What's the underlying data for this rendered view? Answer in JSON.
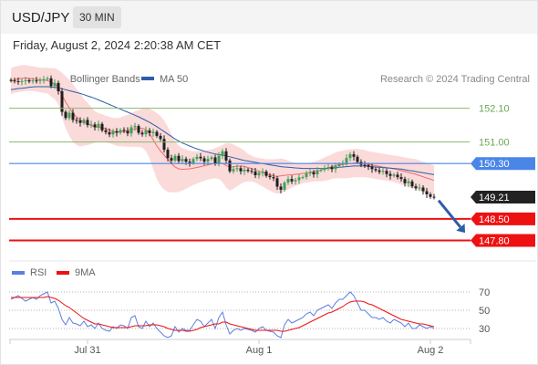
{
  "header": {
    "symbol": "USD/JPY",
    "timeframe": "30 MIN"
  },
  "timestamp": "Friday, August 2, 2024 2:20:38 AM CET",
  "colors": {
    "ma20": "#f26b6b",
    "bollinger_fill": "#fbdada",
    "ma50": "#2c5ea8",
    "green_level": "#86b86e",
    "blue_level": "#4a86e8",
    "red_level": "#ee1111",
    "candle_up": "#3fa055",
    "candle_down": "#1f1f1f",
    "last_price_bg": "#222222",
    "rsi": "#5b7fe0",
    "rsi_ma": "#ee1111",
    "arrow": "#2c5ea8"
  },
  "chart_data": [
    {
      "type": "candlestick",
      "title": "",
      "legend": {
        "placement": "top-left",
        "items": [
          {
            "name": "MA 20 + Bollinger Bands",
            "color": "#f26b6b"
          },
          {
            "name": "MA 50",
            "color": "#2c5ea8"
          }
        ]
      },
      "attribution": "Research © 2024 Trading Central",
      "x_ticks": [
        "Jul 31",
        "Aug 1",
        "Aug 2"
      ],
      "x_tick_bar_index": [
        24,
        71,
        118
      ],
      "ylim": [
        147.4,
        153.6
      ],
      "levels": [
        {
          "value": 152.1,
          "label": "152.10",
          "kind": "resistance-2"
        },
        {
          "value": 151.0,
          "label": "151.00",
          "kind": "resistance-1"
        },
        {
          "value": 150.3,
          "label": "150.30",
          "kind": "pivot"
        },
        {
          "value": 149.21,
          "label": "149.21",
          "kind": "last-price"
        },
        {
          "value": 148.5,
          "label": "148.50",
          "kind": "support-1"
        },
        {
          "value": 147.8,
          "label": "147.80",
          "kind": "support-2"
        }
      ],
      "forecast_arrow": {
        "from": 149.1,
        "to": 148.05,
        "direction": "down"
      },
      "close": [
        153.0,
        152.98,
        152.95,
        152.98,
        153.01,
        152.97,
        153.0,
        152.99,
        153.02,
        153.04,
        153.07,
        152.82,
        152.92,
        152.65,
        151.98,
        151.78,
        151.95,
        151.72,
        151.7,
        151.62,
        151.72,
        151.55,
        151.57,
        151.48,
        151.59,
        151.38,
        151.32,
        151.25,
        151.35,
        151.3,
        151.39,
        151.36,
        151.28,
        151.48,
        151.52,
        151.3,
        151.25,
        151.38,
        151.29,
        151.33,
        151.2,
        151.1,
        150.75,
        150.48,
        150.4,
        150.55,
        150.38,
        150.45,
        150.36,
        150.32,
        150.45,
        150.52,
        150.47,
        150.36,
        150.45,
        150.5,
        150.3,
        150.55,
        150.7,
        150.4,
        150.05,
        150.12,
        150.15,
        150.05,
        150.1,
        150.06,
        150.04,
        149.92,
        150.0,
        150.04,
        149.9,
        149.86,
        149.82,
        149.55,
        149.45,
        149.68,
        149.8,
        149.72,
        149.76,
        149.85,
        149.86,
        149.98,
        150.02,
        149.95,
        150.08,
        150.1,
        150.16,
        150.18,
        150.12,
        150.22,
        150.28,
        150.32,
        150.48,
        150.6,
        150.52,
        150.35,
        150.26,
        150.25,
        150.2,
        150.12,
        150.08,
        150.03,
        150.06,
        149.96,
        149.9,
        149.94,
        149.86,
        149.8,
        149.66,
        149.72,
        149.56,
        149.5,
        149.52,
        149.4,
        149.3,
        149.22,
        149.21
      ],
      "bollinger": {
        "upper": [
          153.4,
          153.45,
          153.48,
          153.5,
          153.5,
          153.48,
          153.46,
          153.44,
          153.42,
          153.42,
          153.42,
          153.4,
          153.4,
          153.34,
          153.26,
          153.14,
          153.02,
          152.88,
          152.72,
          152.58,
          152.4,
          152.28,
          152.14,
          152.0,
          151.94,
          151.9,
          151.86,
          151.82,
          151.78,
          151.78,
          151.8,
          151.85,
          151.88,
          151.95,
          152.0,
          152.04,
          152.08,
          152.1,
          152.08,
          152.02,
          151.94,
          151.84,
          151.7,
          151.5,
          151.25,
          151.02,
          150.88,
          150.8,
          150.76,
          150.72,
          150.7,
          150.7,
          150.7,
          150.72,
          150.74,
          150.76,
          150.8,
          150.85,
          150.9,
          150.96,
          150.96,
          150.92,
          150.86,
          150.8,
          150.72,
          150.62,
          150.56,
          150.5,
          150.48,
          150.46,
          150.44,
          150.44,
          150.44,
          150.45,
          150.46,
          150.44,
          150.4,
          150.35,
          150.32,
          150.3,
          150.3,
          150.3,
          150.32,
          150.36,
          150.4,
          150.44,
          150.5,
          150.55,
          150.6,
          150.66,
          150.7,
          150.72,
          150.75,
          150.76,
          150.78,
          150.78,
          150.76,
          150.74,
          150.7,
          150.68,
          150.66,
          150.64,
          150.62,
          150.6,
          150.58,
          150.56,
          150.55,
          150.52,
          150.5,
          150.48,
          150.46,
          150.44,
          150.4,
          150.36,
          150.32,
          150.28,
          150.24
        ],
        "lower": [
          152.55,
          152.6,
          152.62,
          152.64,
          152.66,
          152.66,
          152.65,
          152.64,
          152.62,
          152.6,
          152.58,
          152.48,
          152.4,
          152.22,
          151.8,
          151.45,
          151.2,
          151.0,
          150.9,
          150.85,
          150.88,
          150.9,
          150.94,
          150.98,
          151.02,
          151.02,
          151.0,
          150.96,
          150.92,
          150.88,
          150.86,
          150.86,
          150.85,
          150.84,
          150.85,
          150.84,
          150.82,
          150.7,
          150.48,
          150.12,
          149.8,
          149.58,
          149.45,
          149.38,
          149.36,
          149.36,
          149.38,
          149.42,
          149.48,
          149.54,
          149.6,
          149.65,
          149.7,
          149.74,
          149.78,
          149.8,
          149.82,
          149.8,
          149.7,
          149.52,
          149.42,
          149.48,
          149.56,
          149.64,
          149.7,
          149.72,
          149.72,
          149.68,
          149.62,
          149.56,
          149.48,
          149.42,
          149.36,
          149.32,
          149.34,
          149.4,
          149.46,
          149.52,
          149.58,
          149.62,
          149.66,
          149.68,
          149.7,
          149.72,
          149.72,
          149.72,
          149.74,
          149.76,
          149.8,
          149.82,
          149.82,
          149.82,
          149.82,
          149.84,
          149.86,
          149.86,
          149.86,
          149.86,
          149.84,
          149.82,
          149.8,
          149.78,
          149.76,
          149.74,
          149.72,
          149.7,
          149.66,
          149.62,
          149.58,
          149.54,
          149.5,
          149.46,
          149.42,
          149.38,
          149.34,
          149.3,
          149.26
        ]
      },
      "ma50": [
        152.7,
        152.72,
        152.74,
        152.75,
        152.76,
        152.78,
        152.79,
        152.8,
        152.8,
        152.8,
        152.8,
        152.79,
        152.78,
        152.76,
        152.73,
        152.7,
        152.67,
        152.64,
        152.61,
        152.58,
        152.54,
        152.5,
        152.46,
        152.42,
        152.37,
        152.32,
        152.27,
        152.22,
        152.17,
        152.12,
        152.07,
        152.02,
        151.97,
        151.92,
        151.87,
        151.82,
        151.76,
        151.7,
        151.64,
        151.57,
        151.5,
        151.42,
        151.34,
        151.26,
        151.18,
        151.1,
        151.03,
        150.97,
        150.92,
        150.87,
        150.82,
        150.78,
        150.74,
        150.7,
        150.67,
        150.64,
        150.61,
        150.59,
        150.57,
        150.55,
        150.52,
        150.49,
        150.46,
        150.43,
        150.4,
        150.38,
        150.36,
        150.34,
        150.32,
        150.3,
        150.28,
        150.26,
        150.24,
        150.22,
        150.2,
        150.19,
        150.18,
        150.17,
        150.16,
        150.15,
        150.14,
        150.14,
        150.14,
        150.14,
        150.14,
        150.14,
        150.14,
        150.15,
        150.16,
        150.17,
        150.18,
        150.19,
        150.2,
        150.21,
        150.22,
        150.22,
        150.22,
        150.22,
        150.21,
        150.2,
        150.19,
        150.18,
        150.17,
        150.16,
        150.15,
        150.14,
        150.13,
        150.12,
        150.1,
        150.08,
        150.06,
        150.04,
        150.02,
        150.0,
        149.98,
        149.96,
        149.94
      ]
    },
    {
      "type": "line",
      "title": "",
      "legend": {
        "placement": "top-left",
        "items": [
          {
            "name": "RSI",
            "color": "#5b7fe0"
          },
          {
            "name": "9MA",
            "color": "#ee1111"
          }
        ]
      },
      "ylim": [
        20,
        80
      ],
      "y_ticks": [
        "70",
        "50",
        "30"
      ],
      "series": [
        {
          "name": "RSI",
          "values": [
            62,
            64,
            66,
            63,
            60,
            62,
            64,
            62,
            66,
            68,
            70,
            58,
            60,
            52,
            40,
            34,
            42,
            36,
            35,
            33,
            38,
            32,
            34,
            30,
            36,
            30,
            28,
            27,
            32,
            30,
            34,
            33,
            30,
            42,
            44,
            32,
            30,
            38,
            32,
            36,
            30,
            26,
            22,
            20,
            22,
            32,
            26,
            30,
            28,
            28,
            34,
            40,
            38,
            32,
            36,
            40,
            30,
            42,
            48,
            34,
            24,
            28,
            30,
            28,
            30,
            29,
            28,
            26,
            30,
            32,
            28,
            27,
            26,
            22,
            20,
            34,
            40,
            36,
            38,
            40,
            42,
            46,
            48,
            44,
            50,
            52,
            54,
            56,
            52,
            58,
            62,
            62,
            66,
            70,
            66,
            58,
            50,
            50,
            46,
            42,
            42,
            40,
            42,
            38,
            36,
            40,
            38,
            36,
            32,
            36,
            30,
            30,
            34,
            32,
            30,
            32,
            30
          ]
        },
        {
          "name": "9MA",
          "values": [
            64,
            64,
            64,
            64,
            64,
            64,
            64,
            64,
            64,
            64,
            65,
            64,
            63,
            61,
            58,
            55,
            53,
            50,
            47,
            44,
            41,
            39,
            37,
            35,
            35,
            34,
            33,
            32,
            31,
            31,
            31,
            31,
            31,
            32,
            33,
            33,
            33,
            33,
            34,
            34,
            34,
            33,
            32,
            30,
            29,
            28,
            28,
            28,
            27,
            27,
            28,
            29,
            31,
            32,
            33,
            34,
            35,
            35,
            37,
            37,
            35,
            34,
            33,
            32,
            31,
            30,
            29,
            28,
            28,
            28,
            28,
            28,
            28,
            28,
            27,
            27,
            28,
            29,
            30,
            31,
            33,
            35,
            37,
            39,
            41,
            43,
            45,
            47,
            48,
            50,
            52,
            54,
            57,
            59,
            60,
            60,
            60,
            59,
            57,
            56,
            54,
            52,
            50,
            48,
            46,
            44,
            42,
            40,
            39,
            38,
            37,
            36,
            35,
            35,
            34,
            33,
            32
          ]
        }
      ],
      "x_ticks": [
        "Jul 31",
        "Aug 1",
        "Aug 2"
      ]
    }
  ]
}
